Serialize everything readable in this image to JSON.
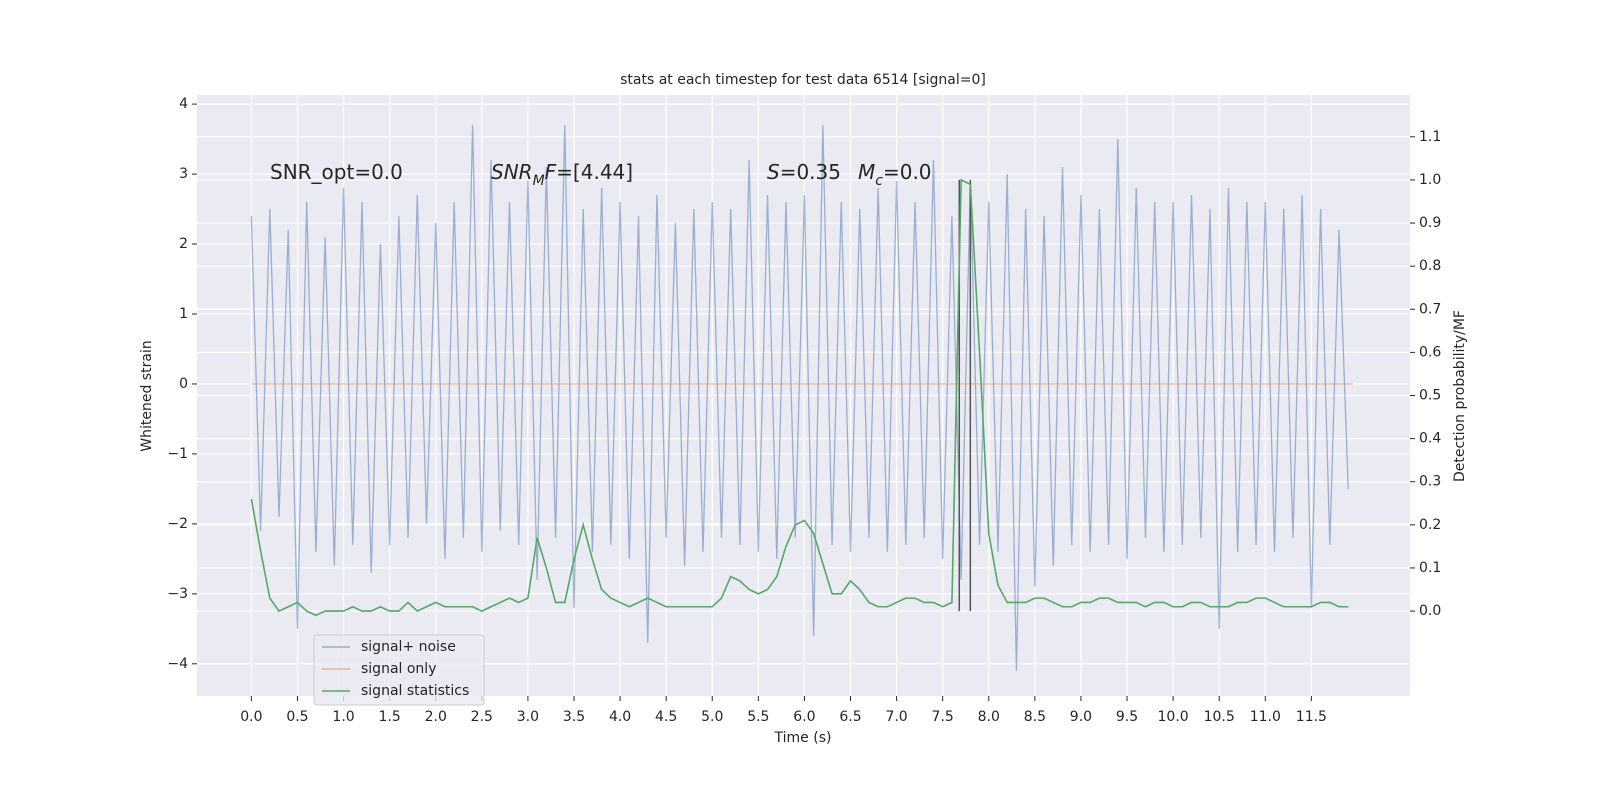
{
  "chart_data": {
    "type": "line",
    "title": "stats at each timestep for test data 6514 [signal=0]",
    "xlabel": "Time (s)",
    "ylabel": "Whitened strain",
    "y2label": "Detection probability/MF",
    "xlim": [
      -0.59,
      12.57
    ],
    "ylim": [
      -4.46,
      4.13
    ],
    "y2lim": [
      -0.197,
      1.197
    ],
    "xticks": [
      {
        "value": 0,
        "label": "0.0"
      },
      {
        "value": 0.5,
        "label": "0.5"
      },
      {
        "value": 1,
        "label": "1.0"
      },
      {
        "value": 1.5,
        "label": "1.5"
      },
      {
        "value": 2,
        "label": "2.0"
      },
      {
        "value": 2.5,
        "label": "2.5"
      },
      {
        "value": 3,
        "label": "3.0"
      },
      {
        "value": 3.5,
        "label": "3.5"
      },
      {
        "value": 4,
        "label": "4.0"
      },
      {
        "value": 4.5,
        "label": "4.5"
      },
      {
        "value": 5,
        "label": "5.0"
      },
      {
        "value": 5.5,
        "label": "5.5"
      },
      {
        "value": 6,
        "label": "6.0"
      },
      {
        "value": 6.5,
        "label": "6.5"
      },
      {
        "value": 7,
        "label": "7.0"
      },
      {
        "value": 7.5,
        "label": "7.5"
      },
      {
        "value": 8,
        "label": "8.0"
      },
      {
        "value": 8.5,
        "label": "8.5"
      },
      {
        "value": 9,
        "label": "9.0"
      },
      {
        "value": 9.5,
        "label": "9.5"
      },
      {
        "value": 10,
        "label": "10.0"
      },
      {
        "value": 10.5,
        "label": "10.5"
      },
      {
        "value": 11,
        "label": "11.0"
      },
      {
        "value": 11.5,
        "label": "11.5"
      }
    ],
    "yticks": [
      {
        "value": -4,
        "label": "−4"
      },
      {
        "value": -3,
        "label": "−3"
      },
      {
        "value": -2,
        "label": "−2"
      },
      {
        "value": -1,
        "label": "−1"
      },
      0,
      1,
      2,
      3,
      4
    ],
    "y2ticks": [
      {
        "value": 0,
        "label": "0.0"
      },
      {
        "value": 0.1,
        "label": "0.1"
      },
      {
        "value": 0.2,
        "label": "0.2"
      },
      {
        "value": 0.3,
        "label": "0.3"
      },
      {
        "value": 0.4,
        "label": "0.4"
      },
      {
        "value": 0.5,
        "label": "0.5"
      },
      {
        "value": 0.6,
        "label": "0.6"
      },
      {
        "value": 0.7,
        "label": "0.7"
      },
      {
        "value": 0.8,
        "label": "0.8"
      },
      {
        "value": 0.9,
        "label": "0.9"
      },
      {
        "value": 1.0,
        "label": "1.0"
      },
      {
        "value": 1.1,
        "label": "1.1"
      }
    ],
    "grid": true,
    "legend": "lower left",
    "x": [
      0,
      0.1,
      0.2,
      0.3,
      0.4,
      0.5,
      0.6,
      0.7,
      0.8,
      0.9,
      1,
      1.1,
      1.2,
      1.3,
      1.4,
      1.5,
      1.6,
      1.7,
      1.8,
      1.9,
      2,
      2.1,
      2.2,
      2.3,
      2.4,
      2.5,
      2.6,
      2.7,
      2.8,
      2.9,
      3,
      3.1,
      3.2,
      3.3,
      3.4,
      3.5,
      3.6,
      3.7,
      3.8,
      3.9,
      4,
      4.1,
      4.2,
      4.3,
      4.4,
      4.5,
      4.6,
      4.7,
      4.8,
      4.9,
      5,
      5.1,
      5.2,
      5.3,
      5.4,
      5.5,
      5.6,
      5.7,
      5.8,
      5.9,
      6,
      6.1,
      6.2,
      6.3,
      6.4,
      6.5,
      6.6,
      6.7,
      6.8,
      6.9,
      7,
      7.1,
      7.2,
      7.3,
      7.4,
      7.5,
      7.6,
      7.7,
      7.8,
      7.9,
      8,
      8.1,
      8.2,
      8.3,
      8.4,
      8.5,
      8.6,
      8.7,
      8.8,
      8.9,
      9,
      9.1,
      9.2,
      9.3,
      9.4,
      9.5,
      9.6,
      9.7,
      9.8,
      9.9,
      10,
      10.1,
      10.2,
      10.3,
      10.4,
      10.5,
      10.6,
      10.7,
      10.8,
      10.9,
      11,
      11.1,
      11.2,
      11.3,
      11.4,
      11.5,
      11.6,
      11.7,
      11.8,
      11.9
    ],
    "series": [
      {
        "name": "signal+ noise",
        "color": "#4c72b0",
        "opacity": 0.5,
        "values": [
          2.4,
          -2.1,
          2.5,
          -1.9,
          2.2,
          -3.5,
          2.6,
          -2.4,
          2.1,
          -2.6,
          2.8,
          -2.3,
          2.6,
          -2.7,
          2.0,
          -2.3,
          2.4,
          -2.2,
          2.7,
          -2.0,
          2.3,
          -2.5,
          2.6,
          -2.2,
          3.7,
          -2.4,
          3.2,
          -2.1,
          2.6,
          -2.3,
          2.9,
          -2.8,
          3.1,
          -2.2,
          3.7,
          -3.2,
          2.5,
          -2.4,
          2.8,
          -2.3,
          2.6,
          -2.5,
          2.4,
          -3.7,
          2.7,
          -2.2,
          2.3,
          -2.6,
          2.5,
          -2.4,
          2.6,
          -2.2,
          2.5,
          -2.3,
          3.2,
          -2.4,
          2.7,
          -2.5,
          2.6,
          -2.2,
          2.7,
          -3.6,
          3.7,
          -2.3,
          2.6,
          -2.4,
          2.5,
          -2.2,
          2.8,
          -2.4,
          2.9,
          -2.3,
          2.6,
          -2.2,
          3.2,
          -2.5,
          2.4,
          -2.8,
          2.9,
          -2.3,
          2.6,
          -2.4,
          3.0,
          -4.1,
          2.5,
          -2.9,
          2.4,
          -2.6,
          3.1,
          -2.3,
          2.7,
          -2.4,
          2.5,
          -2.3,
          3.5,
          -2.5,
          2.8,
          -2.2,
          2.6,
          -2.4,
          2.6,
          -2.3,
          2.7,
          -2.2,
          2.5,
          -3.5,
          2.8,
          -2.4,
          2.6,
          -2.3,
          2.6,
          -2.4,
          2.5,
          -2.2,
          2.7,
          -3.2,
          2.5,
          -2.3,
          2.2,
          -1.5
        ]
      },
      {
        "name": "signal only",
        "color": "#dd8452",
        "opacity": 0.5,
        "x": [
          0,
          11.95
        ],
        "values": [
          0,
          0
        ]
      },
      {
        "name": "signal statistics",
        "color": "#55a868",
        "opacity": 1,
        "axis": "y2",
        "values": [
          0.26,
          0.14,
          0.03,
          0.0,
          0.01,
          0.02,
          0.0,
          -0.01,
          0.0,
          0.0,
          0.0,
          0.01,
          0.0,
          0.0,
          0.01,
          0.0,
          0.0,
          0.02,
          0.0,
          0.01,
          0.02,
          0.01,
          0.01,
          0.01,
          0.01,
          0.0,
          0.01,
          0.02,
          0.03,
          0.02,
          0.03,
          0.17,
          0.1,
          0.02,
          0.02,
          0.12,
          0.2,
          0.12,
          0.05,
          0.03,
          0.02,
          0.01,
          0.02,
          0.03,
          0.02,
          0.01,
          0.01,
          0.01,
          0.01,
          0.01,
          0.01,
          0.03,
          0.08,
          0.07,
          0.05,
          0.04,
          0.05,
          0.08,
          0.15,
          0.2,
          0.21,
          0.18,
          0.11,
          0.04,
          0.04,
          0.07,
          0.05,
          0.02,
          0.01,
          0.01,
          0.02,
          0.03,
          0.03,
          0.02,
          0.02,
          0.01,
          0.02,
          1.0,
          0.99,
          0.6,
          0.18,
          0.06,
          0.02,
          0.02,
          0.02,
          0.03,
          0.03,
          0.02,
          0.01,
          0.01,
          0.02,
          0.02,
          0.03,
          0.03,
          0.02,
          0.02,
          0.02,
          0.01,
          0.02,
          0.02,
          0.01,
          0.01,
          0.02,
          0.02,
          0.01,
          0.01,
          0.01,
          0.02,
          0.02,
          0.03,
          0.03,
          0.02,
          0.01,
          0.01,
          0.01,
          0.01,
          0.02,
          0.02,
          0.01,
          0.01
        ]
      }
    ],
    "vlines": {
      "x": [
        7.68,
        7.8
      ],
      "ymin": 0,
      "ymax": 1.0,
      "color": "#555555",
      "axis": "y2"
    },
    "annotations": [
      [
        {
          "text": "SNR_opt=0.0"
        }
      ],
      [
        {
          "text": "SNR",
          "italic": true
        },
        {
          "text": "M",
          "italic": true,
          "sub": true
        },
        {
          "text": "F",
          "italic": true
        },
        {
          "text": "=[4.44]"
        }
      ],
      [
        {
          "text": "S",
          "italic": true
        },
        {
          "text": "=0.35"
        }
      ],
      [
        {
          "text": "M",
          "italic": true
        },
        {
          "text": "c",
          "italic": true,
          "sub": true
        },
        {
          "text": "=0.0"
        }
      ]
    ]
  }
}
